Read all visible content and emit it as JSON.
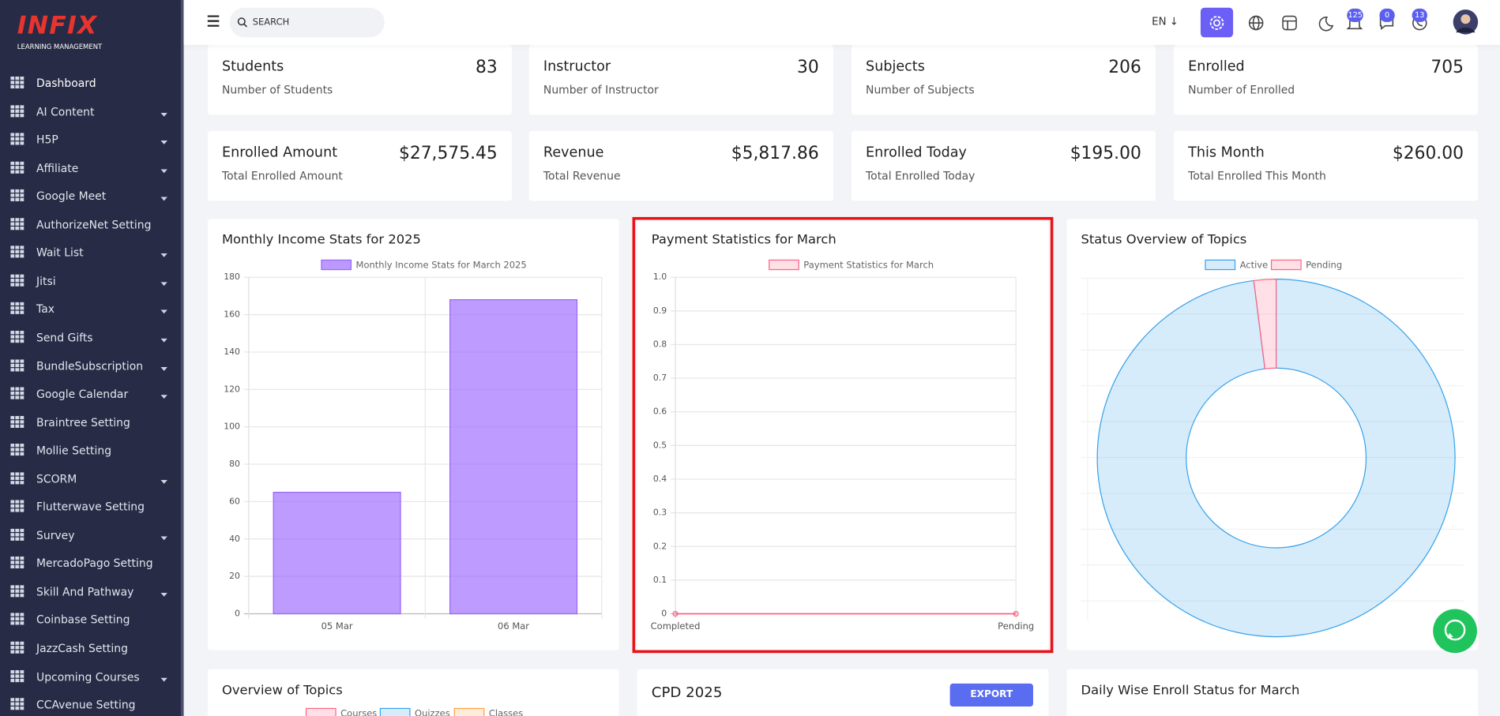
{
  "sidebar": {
    "logo": "INFIX",
    "logo_subtitle": "LEARNING MANAGEMENT",
    "menu": [
      {
        "label": "Dashboard",
        "submenu": false
      },
      {
        "label": "AI Content",
        "submenu": true
      },
      {
        "label": "H5P",
        "submenu": true
      },
      {
        "label": "Affiliate",
        "submenu": true
      },
      {
        "label": "Google Meet",
        "submenu": true
      },
      {
        "label": "AuthorizeNet Setting",
        "submenu": false
      },
      {
        "label": "Wait List",
        "submenu": true
      },
      {
        "label": "Jitsi",
        "submenu": true
      },
      {
        "label": "Tax",
        "submenu": true
      },
      {
        "label": "Send Gifts",
        "submenu": true
      },
      {
        "label": "BundleSubscription",
        "submenu": true
      },
      {
        "label": "Google Calendar",
        "submenu": true
      },
      {
        "label": "Braintree Setting",
        "submenu": false
      },
      {
        "label": "Mollie Setting",
        "submenu": false
      },
      {
        "label": "SCORM",
        "submenu": true
      },
      {
        "label": "Flutterwave Setting",
        "submenu": false
      },
      {
        "label": "Survey",
        "submenu": true
      },
      {
        "label": "MercadoPago Setting",
        "submenu": false
      },
      {
        "label": "Skill And Pathway",
        "submenu": true
      },
      {
        "label": "Coinbase Setting",
        "submenu": false
      },
      {
        "label": "JazzCash Setting",
        "submenu": false
      },
      {
        "label": "Upcoming Courses",
        "submenu": true
      },
      {
        "label": "CCAvenue Setting",
        "submenu": false
      }
    ]
  },
  "topbar": {
    "search_placeholder": "SEARCH",
    "language": "EN",
    "badges": [
      "125",
      "0",
      "13"
    ]
  },
  "stats": [
    {
      "title": "Students",
      "value": "83",
      "subtitle": "Number of Students"
    },
    {
      "title": "Instructor",
      "value": "30",
      "subtitle": "Number of Instructor"
    },
    {
      "title": "Subjects",
      "value": "206",
      "subtitle": "Number of Subjects"
    },
    {
      "title": "Enrolled",
      "value": "705",
      "subtitle": "Number of Enrolled"
    },
    {
      "title": "Enrolled Amount",
      "value": "$27,575.45",
      "subtitle": "Total Enrolled Amount"
    },
    {
      "title": "Revenue",
      "value": "$5,817.86",
      "subtitle": "Total Revenue"
    },
    {
      "title": "Enrolled Today",
      "value": "$195.00",
      "subtitle": "Total Enrolled Today"
    },
    {
      "title": "This Month",
      "value": "$260.00",
      "subtitle": "Total Enrolled This Month"
    }
  ],
  "chart_data": [
    {
      "type": "bar",
      "title": "Monthly Income Stats for 2025",
      "categories": [
        "05 Mar",
        "06 Mar"
      ],
      "series": [
        {
          "name": "Monthly Income Stats for March 2025",
          "color": "#9966ff",
          "values": [
            65,
            168
          ]
        }
      ],
      "ylim": [
        0,
        180
      ],
      "yticks": [
        0,
        20,
        40,
        60,
        80,
        100,
        120,
        140,
        160,
        180
      ],
      "grid": true
    },
    {
      "type": "line",
      "title": "Payment Statistics for March",
      "categories": [
        "Completed",
        "Pending"
      ],
      "series": [
        {
          "name": "Payment Statistics for March",
          "color": "#ff6384",
          "values": [
            0,
            0
          ]
        }
      ],
      "ylim": [
        0,
        1
      ],
      "yticks": [
        0,
        0.1,
        0.2,
        0.3,
        0.4,
        0.5,
        0.6,
        0.7,
        0.8,
        0.9,
        {
          "value": 1,
          "label": "1.0"
        }
      ],
      "grid": true,
      "highlighted": true
    },
    {
      "type": "doughnut",
      "title": "Status Overview of Topics",
      "categories": [
        "Active",
        "Pending"
      ],
      "values": [
        49,
        1
      ],
      "colors": [
        "#36a2eb",
        "#ff6384"
      ]
    }
  ],
  "panels": [
    {
      "title": "Overview of Topics",
      "legend": [
        {
          "name": "Courses",
          "color": "#ff6384"
        },
        {
          "name": "Quizzes",
          "color": "#36a2eb"
        },
        {
          "name": "Classes",
          "color": "#ff9f40"
        }
      ]
    },
    {
      "title": "CPD 2025",
      "button": "EXPORT"
    },
    {
      "title": "Daily Wise Enroll Status for March"
    }
  ]
}
